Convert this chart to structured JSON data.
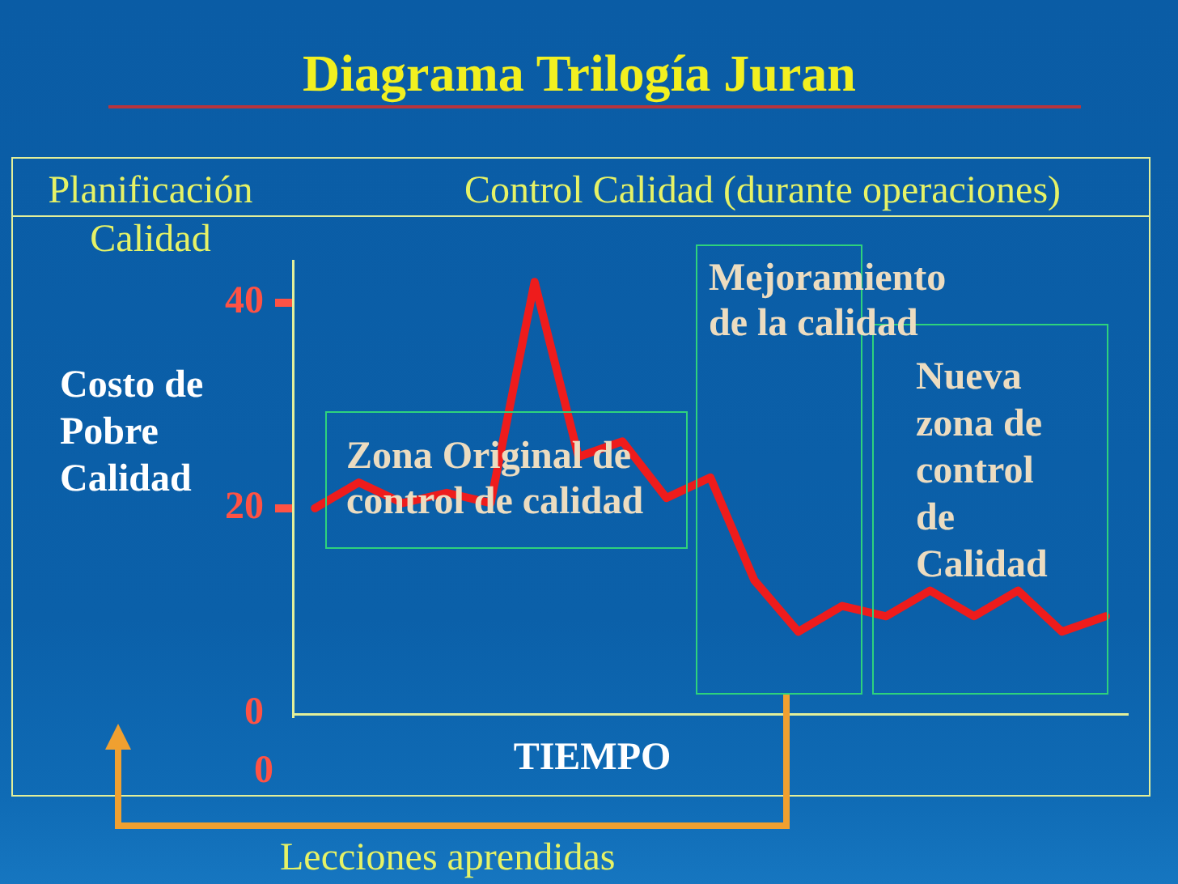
{
  "chart_data": {
    "type": "line",
    "title": "Diagrama Trilogía Juran",
    "xlabel": "TIEMPO",
    "ylabel": "Costo de Pobre Calidad",
    "categories": [
      null,
      null,
      null,
      null,
      null,
      null,
      null,
      null,
      null,
      null,
      null,
      null,
      null,
      null,
      null,
      null,
      null,
      null,
      null
    ],
    "values": [
      20,
      22.5,
      20.5,
      21.5,
      20.5,
      42,
      25,
      26.5,
      21,
      23,
      13,
      8,
      10.5,
      9.5,
      12,
      9.5,
      12,
      8,
      9.5
    ],
    "color": "#ee1c1c",
    "ylim": [
      0,
      44
    ],
    "yticks": [
      0,
      20,
      40
    ],
    "tick_labels": "y",
    "grid": false,
    "legend": false,
    "marker": "none",
    "line_style": "solid",
    "annotations": [
      "Planificación Calidad",
      "Control Calidad (durante operaciones)",
      "Zona Original de control de calidad",
      "Mejoramiento de la calidad",
      "Nueva zona de control de Calidad",
      "Lecciones aprendidas",
      "0"
    ]
  }
}
